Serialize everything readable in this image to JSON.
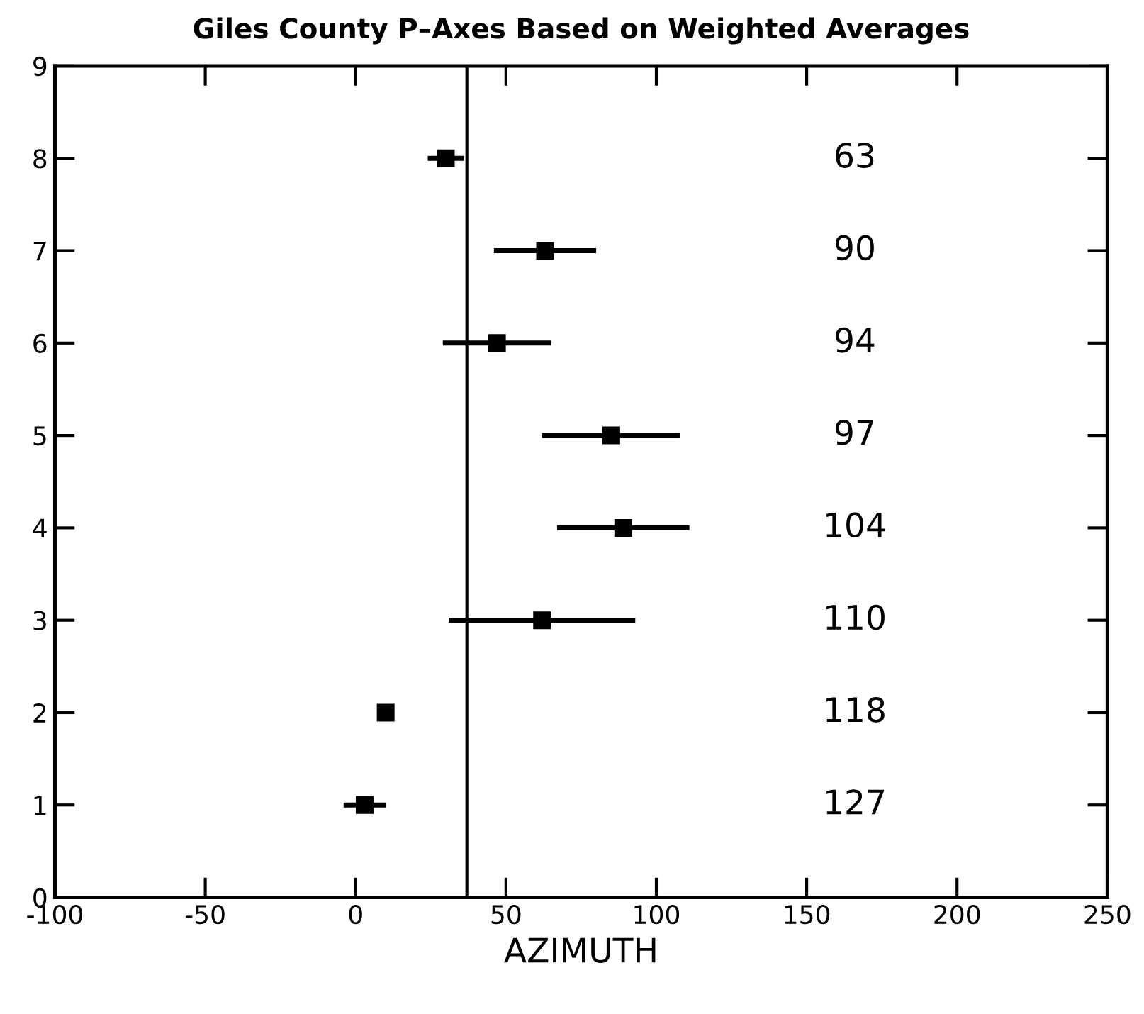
{
  "chart_data": {
    "type": "scatter",
    "title": "Giles County P–Axes Based on Weighted Averages",
    "xlabel": "AZIMUTH",
    "x": [
      30,
      63,
      47,
      85,
      89,
      62,
      10,
      3
    ],
    "values": [
      8,
      7,
      6,
      5,
      4,
      3,
      2,
      1
    ],
    "xerrors": [
      6,
      17,
      18,
      23,
      22,
      31,
      null,
      7
    ],
    "color": "#000000",
    "marker": "square",
    "xlim": [
      -100,
      250
    ],
    "xticks": [
      -100,
      -50,
      0,
      50,
      100,
      150,
      200,
      250
    ],
    "ylim": [
      0,
      9
    ],
    "yticks": [
      0,
      1,
      2,
      3,
      4,
      5,
      6,
      7,
      8,
      9
    ],
    "ref_lines": [
      {
        "axis": "x",
        "value": 37,
        "color": "#000000"
      }
    ],
    "annotations": [
      "63",
      "90",
      "94",
      "97",
      "104",
      "110",
      "118",
      "127"
    ],
    "grid": false
  }
}
